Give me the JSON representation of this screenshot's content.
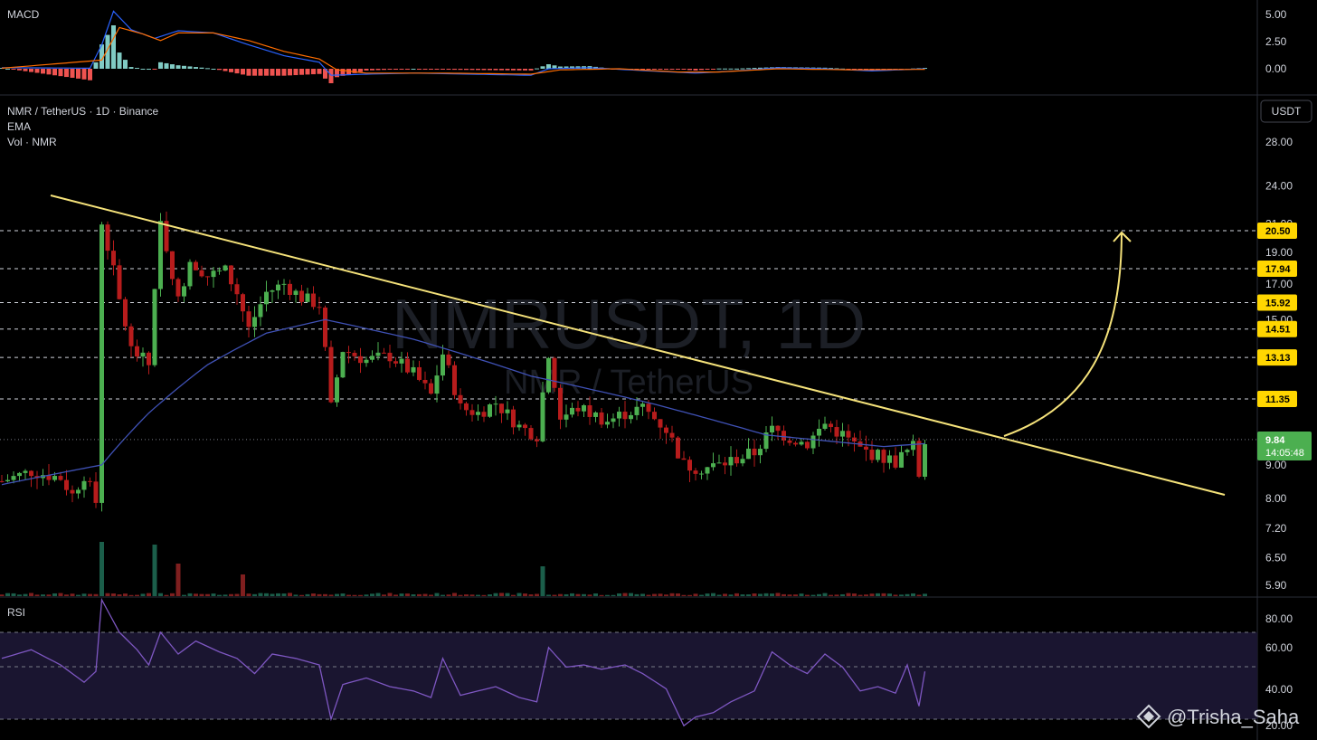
{
  "header": {
    "symbol_line": "NMR / TetherUS · 1D · Binance",
    "ema_label": "EMA",
    "vol_label": "Vol · NMR",
    "currency_button": "USDT"
  },
  "watermark": {
    "ticker": "NMRUSDT, 1D",
    "name": "NMR / TetherUS",
    "author": "@Trisha_Saha"
  },
  "colors": {
    "up": "#26a69a",
    "down": "#ef5350",
    "candle_up": "#4caf50",
    "candle_down": "#b71c1c",
    "ema": "#3f51b5",
    "trendline": "#f5e27a",
    "level_tag": "#ffd600",
    "price_tag": "#4caf50",
    "rsi_line": "#7e57c2",
    "macd_line": "#2962ff",
    "signal_line": "#ff6d00"
  },
  "macd": {
    "label": "MACD",
    "ticks": [
      "5.00",
      "2.50",
      "0.00"
    ]
  },
  "rsi": {
    "label": "RSI",
    "ticks": [
      "80.00",
      "60.00",
      "40.00",
      "20.00"
    ]
  },
  "price_axis": {
    "ticks": [
      "28.00",
      "24.00",
      "21.00",
      "19.00",
      "17.00",
      "15.00",
      "9.00",
      "8.00",
      "7.20",
      "6.50",
      "5.90"
    ]
  },
  "levels": [
    {
      "value": "20.50"
    },
    {
      "value": "17.94"
    },
    {
      "value": "15.92"
    },
    {
      "value": "14.51"
    },
    {
      "value": "13.13"
    },
    {
      "value": "11.35"
    }
  ],
  "current_price": {
    "value": "9.84",
    "countdown": "14:05:48"
  },
  "chart_data": {
    "type": "candlestick",
    "title": "NMR / TetherUS · 1D · Binance",
    "y_scale": "log",
    "ylim": [
      5.6,
      32
    ],
    "close_points": [
      [
        0,
        8.5
      ],
      [
        5,
        8.8
      ],
      [
        10,
        8.6
      ],
      [
        12,
        8.1
      ],
      [
        14,
        8.7
      ],
      [
        16,
        7.9
      ],
      [
        17,
        21.2
      ],
      [
        20,
        16.0
      ],
      [
        22,
        13.5
      ],
      [
        25,
        12.8
      ],
      [
        27,
        21.0
      ],
      [
        30,
        16.0
      ],
      [
        32,
        18.5
      ],
      [
        35,
        17.5
      ],
      [
        38,
        17.8
      ],
      [
        40,
        16.5
      ],
      [
        42,
        14.5
      ],
      [
        45,
        16.5
      ],
      [
        48,
        17.0
      ],
      [
        51,
        16.2
      ],
      [
        54,
        15.8
      ],
      [
        56,
        11.0
      ],
      [
        58,
        13.5
      ],
      [
        62,
        13.0
      ],
      [
        66,
        13.2
      ],
      [
        70,
        12.4
      ],
      [
        73,
        11.5
      ],
      [
        75,
        13.3
      ],
      [
        78,
        11.0
      ],
      [
        81,
        10.8
      ],
      [
        84,
        11.2
      ],
      [
        88,
        10.3
      ],
      [
        91,
        10.0
      ],
      [
        93,
        13.2
      ],
      [
        95,
        10.6
      ],
      [
        98,
        11.0
      ],
      [
        100,
        10.8
      ],
      [
        103,
        10.5
      ],
      [
        106,
        10.8
      ],
      [
        109,
        11.0
      ],
      [
        113,
        10.2
      ],
      [
        116,
        9.0
      ],
      [
        119,
        8.9
      ],
      [
        122,
        9.0
      ],
      [
        125,
        9.2
      ],
      [
        128,
        9.4
      ],
      [
        131,
        10.2
      ],
      [
        134,
        9.9
      ],
      [
        137,
        9.7
      ],
      [
        140,
        10.4
      ],
      [
        143,
        10.0
      ],
      [
        146,
        9.5
      ],
      [
        149,
        9.3
      ],
      [
        152,
        9.1
      ],
      [
        155,
        9.6
      ],
      [
        156,
        8.7
      ],
      [
        157,
        9.84
      ]
    ],
    "volume_spikes": [
      {
        "day": 17,
        "relative": 1.0
      },
      {
        "day": 26,
        "relative": 0.95
      },
      {
        "day": 30,
        "relative": 0.6
      },
      {
        "day": 92,
        "relative": 0.55
      },
      {
        "day": 41,
        "relative": 0.4
      }
    ],
    "ema_points": [
      [
        0,
        8.4
      ],
      [
        17,
        9.0
      ],
      [
        25,
        10.8
      ],
      [
        35,
        12.8
      ],
      [
        45,
        14.3
      ],
      [
        55,
        15.0
      ],
      [
        70,
        14.0
      ],
      [
        90,
        12.3
      ],
      [
        110,
        11.2
      ],
      [
        130,
        10.0
      ],
      [
        150,
        9.6
      ],
      [
        157,
        9.7
      ]
    ],
    "trendline": {
      "from": [
        8,
        23.5
      ],
      "to": [
        196,
        8.1
      ]
    },
    "projection_target": 20.5,
    "rsi_points": [
      [
        0,
        58
      ],
      [
        5,
        62
      ],
      [
        10,
        55
      ],
      [
        14,
        47
      ],
      [
        16,
        52
      ],
      [
        17,
        85
      ],
      [
        20,
        70
      ],
      [
        23,
        62
      ],
      [
        25,
        55
      ],
      [
        27,
        70
      ],
      [
        30,
        60
      ],
      [
        33,
        66
      ],
      [
        37,
        61
      ],
      [
        40,
        58
      ],
      [
        43,
        51
      ],
      [
        46,
        60
      ],
      [
        50,
        58
      ],
      [
        54,
        55
      ],
      [
        56,
        30
      ],
      [
        58,
        46
      ],
      [
        62,
        49
      ],
      [
        66,
        45
      ],
      [
        70,
        43
      ],
      [
        73,
        40
      ],
      [
        75,
        58
      ],
      [
        78,
        41
      ],
      [
        81,
        43
      ],
      [
        84,
        45
      ],
      [
        88,
        40
      ],
      [
        91,
        38
      ],
      [
        93,
        63
      ],
      [
        96,
        54
      ],
      [
        99,
        55
      ],
      [
        102,
        53
      ],
      [
        106,
        55
      ],
      [
        109,
        51
      ],
      [
        113,
        44
      ],
      [
        116,
        27
      ],
      [
        118,
        31
      ],
      [
        121,
        33
      ],
      [
        124,
        38
      ],
      [
        128,
        43
      ],
      [
        131,
        61
      ],
      [
        134,
        55
      ],
      [
        137,
        51
      ],
      [
        140,
        60
      ],
      [
        143,
        54
      ],
      [
        146,
        43
      ],
      [
        149,
        45
      ],
      [
        152,
        42
      ],
      [
        154,
        55
      ],
      [
        156,
        36
      ],
      [
        157,
        52
      ]
    ],
    "macd_points": [
      [
        0,
        0.1
      ],
      [
        15,
        0.05
      ],
      [
        17,
        2.2
      ],
      [
        19,
        5.3
      ],
      [
        22,
        3.6
      ],
      [
        26,
        2.8
      ],
      [
        30,
        3.5
      ],
      [
        36,
        3.3
      ],
      [
        42,
        2.2
      ],
      [
        48,
        1.2
      ],
      [
        54,
        0.6
      ],
      [
        56,
        -0.6
      ],
      [
        62,
        -0.5
      ],
      [
        70,
        -0.4
      ],
      [
        80,
        -0.5
      ],
      [
        90,
        -0.6
      ],
      [
        93,
        0.0
      ],
      [
        100,
        0.1
      ],
      [
        110,
        -0.2
      ],
      [
        118,
        -0.4
      ],
      [
        125,
        -0.2
      ],
      [
        132,
        0.1
      ],
      [
        140,
        0.0
      ],
      [
        148,
        -0.2
      ],
      [
        157,
        0.0
      ]
    ],
    "signal_points": [
      [
        0,
        0.05
      ],
      [
        17,
        0.8
      ],
      [
        20,
        3.8
      ],
      [
        24,
        3.2
      ],
      [
        27,
        2.6
      ],
      [
        30,
        3.3
      ],
      [
        36,
        3.3
      ],
      [
        42,
        2.6
      ],
      [
        48,
        1.6
      ],
      [
        54,
        0.9
      ],
      [
        57,
        -0.1
      ],
      [
        62,
        -0.4
      ],
      [
        75,
        -0.4
      ],
      [
        90,
        -0.5
      ],
      [
        95,
        -0.1
      ],
      [
        105,
        0.0
      ],
      [
        115,
        -0.3
      ],
      [
        122,
        -0.3
      ],
      [
        132,
        0.0
      ],
      [
        145,
        -0.1
      ],
      [
        157,
        -0.05
      ]
    ]
  }
}
